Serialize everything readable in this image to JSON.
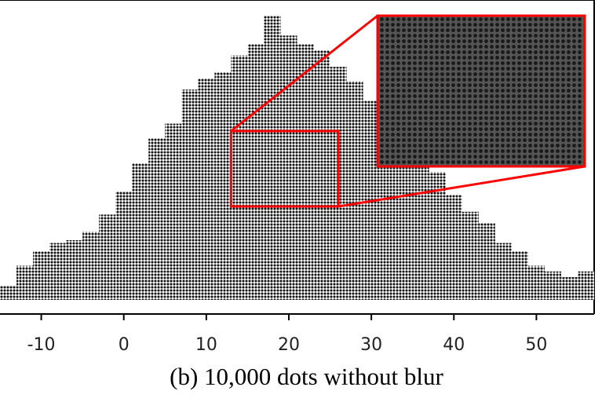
{
  "caption": "(b)  10,000 dots without blur",
  "chart_data": {
    "type": "scatter",
    "subtype": "dot-plot",
    "title": "",
    "xlabel": "",
    "ylabel": "",
    "total_dots": 10000,
    "xlim": [
      -15,
      57
    ],
    "xticks": [
      -10,
      0,
      10,
      20,
      30,
      40,
      50
    ],
    "xtick_labels": [
      "-10",
      "0",
      "10",
      "20",
      "30",
      "40",
      "50"
    ],
    "y_axis_shown": false,
    "grid": false,
    "dot_color": "#000000",
    "annotations": [
      {
        "type": "zoom-rectangle",
        "x_range": [
          13,
          26
        ],
        "color": "#ff0000"
      },
      {
        "type": "zoom-inset",
        "color": "#ff0000"
      }
    ],
    "column_heights": {
      "x": [
        -14,
        -12,
        -10,
        -8,
        -6,
        -4,
        -2,
        0,
        2,
        4,
        6,
        8,
        10,
        12,
        14,
        16,
        18,
        20,
        22,
        24,
        26,
        28,
        30,
        32,
        34,
        36,
        38,
        40,
        42,
        44,
        46,
        48,
        50,
        52,
        54,
        56
      ],
      "relative_height": [
        0.05,
        0.12,
        0.17,
        0.2,
        0.21,
        0.24,
        0.3,
        0.38,
        0.48,
        0.57,
        0.62,
        0.74,
        0.78,
        0.8,
        0.86,
        0.9,
        1.0,
        0.93,
        0.9,
        0.88,
        0.82,
        0.77,
        0.7,
        0.64,
        0.6,
        0.52,
        0.45,
        0.37,
        0.31,
        0.27,
        0.2,
        0.17,
        0.12,
        0.1,
        0.08,
        0.1
      ]
    }
  }
}
